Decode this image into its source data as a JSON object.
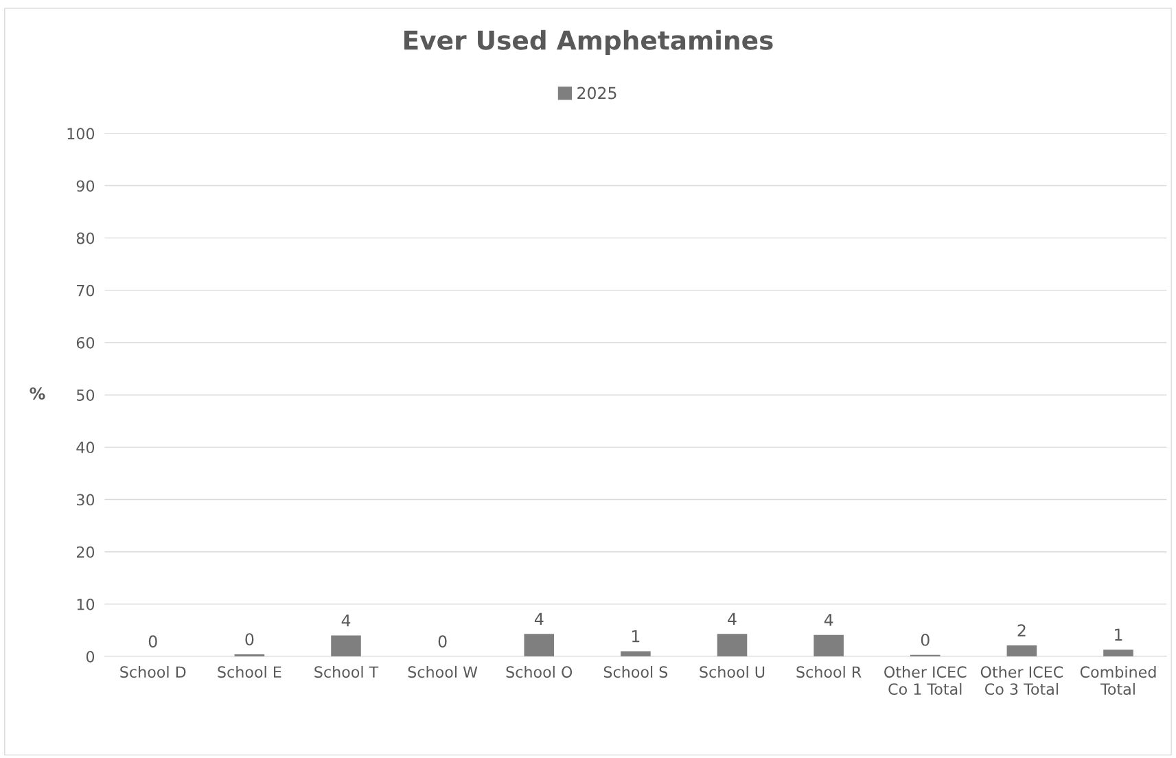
{
  "chart_data": {
    "type": "bar",
    "title": "Ever Used Amphetamines",
    "ylabel": "%",
    "categories": [
      "School D",
      "School E",
      "School T",
      "School W",
      "School O",
      "School S",
      "School U",
      "School R",
      "Other ICEC\nCo 1 Total",
      "Other ICEC\nCo 3 Total",
      "Combined\nTotal"
    ],
    "series": [
      {
        "name": "2025",
        "color": "#7f7f7f",
        "values": [
          0,
          0.4,
          4.0,
          0,
          4.3,
          1.0,
          4.3,
          4.1,
          0.3,
          2.1,
          1.3
        ],
        "value_labels": [
          "0",
          "0",
          "4",
          "0",
          "4",
          "1",
          "4",
          "4",
          "0",
          "2",
          "1"
        ]
      }
    ],
    "ylim": [
      0,
      100
    ],
    "yticks": [
      0,
      10,
      20,
      30,
      40,
      50,
      60,
      70,
      80,
      90,
      100
    ],
    "grid": "y",
    "legend": "top"
  }
}
